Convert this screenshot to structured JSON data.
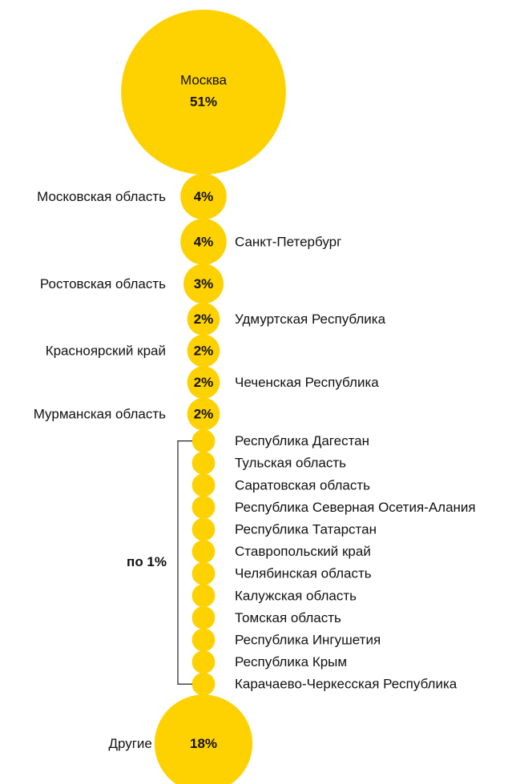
{
  "chart_data": {
    "type": "bubble",
    "color": "#fed100",
    "categories": [
      "Москва",
      "Московская область",
      "Санкт-Петербург",
      "Ростовская область",
      "Удмуртская Республика",
      "Красноярский край",
      "Чеченская Республика",
      "Мурманская область",
      "Республика Дагестан",
      "Тульская область",
      "Саратовская область",
      "Республика Северная Осетия-Алания",
      "Республика Татарстан",
      "Ставропольский край",
      "Челябинская область",
      "Калужская область",
      "Томская область",
      "Республика Ингушетия",
      "Республика Крым",
      "Карачаево-Черкесская Республика",
      "Другие"
    ],
    "values": [
      51,
      4,
      4,
      3,
      2,
      2,
      2,
      2,
      1,
      1,
      1,
      1,
      1,
      1,
      1,
      1,
      1,
      1,
      1,
      1,
      18
    ],
    "value_labels": [
      "51%",
      "4%",
      "4%",
      "3%",
      "2%",
      "2%",
      "2%",
      "2%",
      null,
      null,
      null,
      null,
      null,
      null,
      null,
      null,
      null,
      null,
      null,
      null,
      "18%"
    ],
    "group_label": "по 1%"
  }
}
